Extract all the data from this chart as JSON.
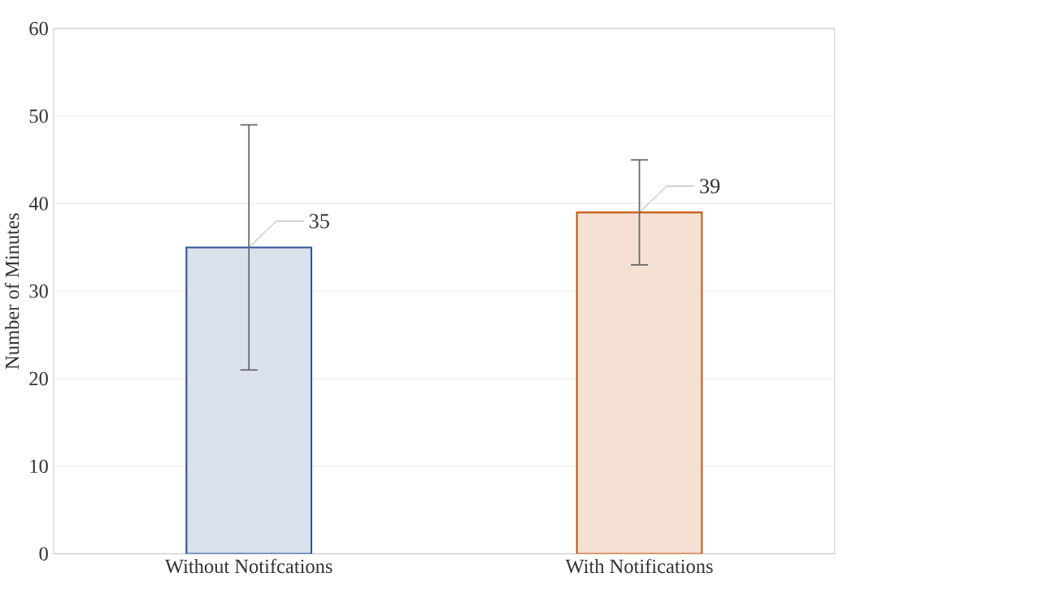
{
  "chart_data": {
    "type": "bar",
    "ylabel": "Number of Minutes",
    "categories": [
      "Without Notifcations",
      "With Notifications"
    ],
    "values": [
      35,
      39
    ],
    "colors": [
      "#2f5597",
      "#c55a11"
    ],
    "errors": [
      14,
      6
    ],
    "data_labels": true,
    "ylim": [
      0,
      60
    ],
    "yticks": [
      0,
      10,
      20,
      30,
      40,
      50,
      60
    ],
    "grid": "y"
  }
}
